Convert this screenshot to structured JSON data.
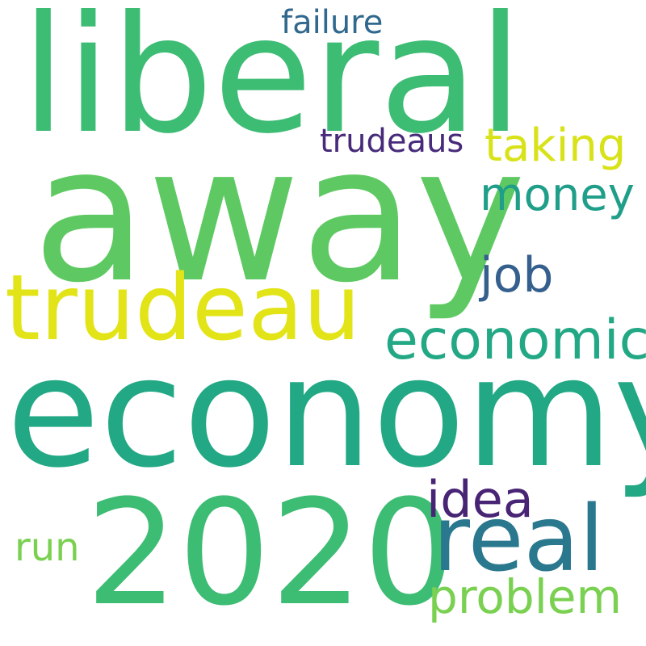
{
  "words": [
    {
      "text": "liberal",
      "color": "#3dbc74"
    },
    {
      "text": "away",
      "color": "#5ec962"
    },
    {
      "text": "economy",
      "color": "#22a884"
    },
    {
      "text": "2020",
      "color": "#3dbc74"
    },
    {
      "text": "trudeau",
      "color": "#e2e418"
    },
    {
      "text": "real",
      "color": "#2a788e"
    },
    {
      "text": "economic",
      "color": "#22a884"
    },
    {
      "text": "money",
      "color": "#1f9e89"
    },
    {
      "text": "taking",
      "color": "#d8e219"
    },
    {
      "text": "trudeaus",
      "color": "#472a7a"
    },
    {
      "text": "failure",
      "color": "#31688e"
    },
    {
      "text": "job",
      "color": "#35608d"
    },
    {
      "text": "idea",
      "color": "#482475"
    },
    {
      "text": "run",
      "color": "#7ad151"
    },
    {
      "text": "problem",
      "color": "#7ad151"
    }
  ]
}
